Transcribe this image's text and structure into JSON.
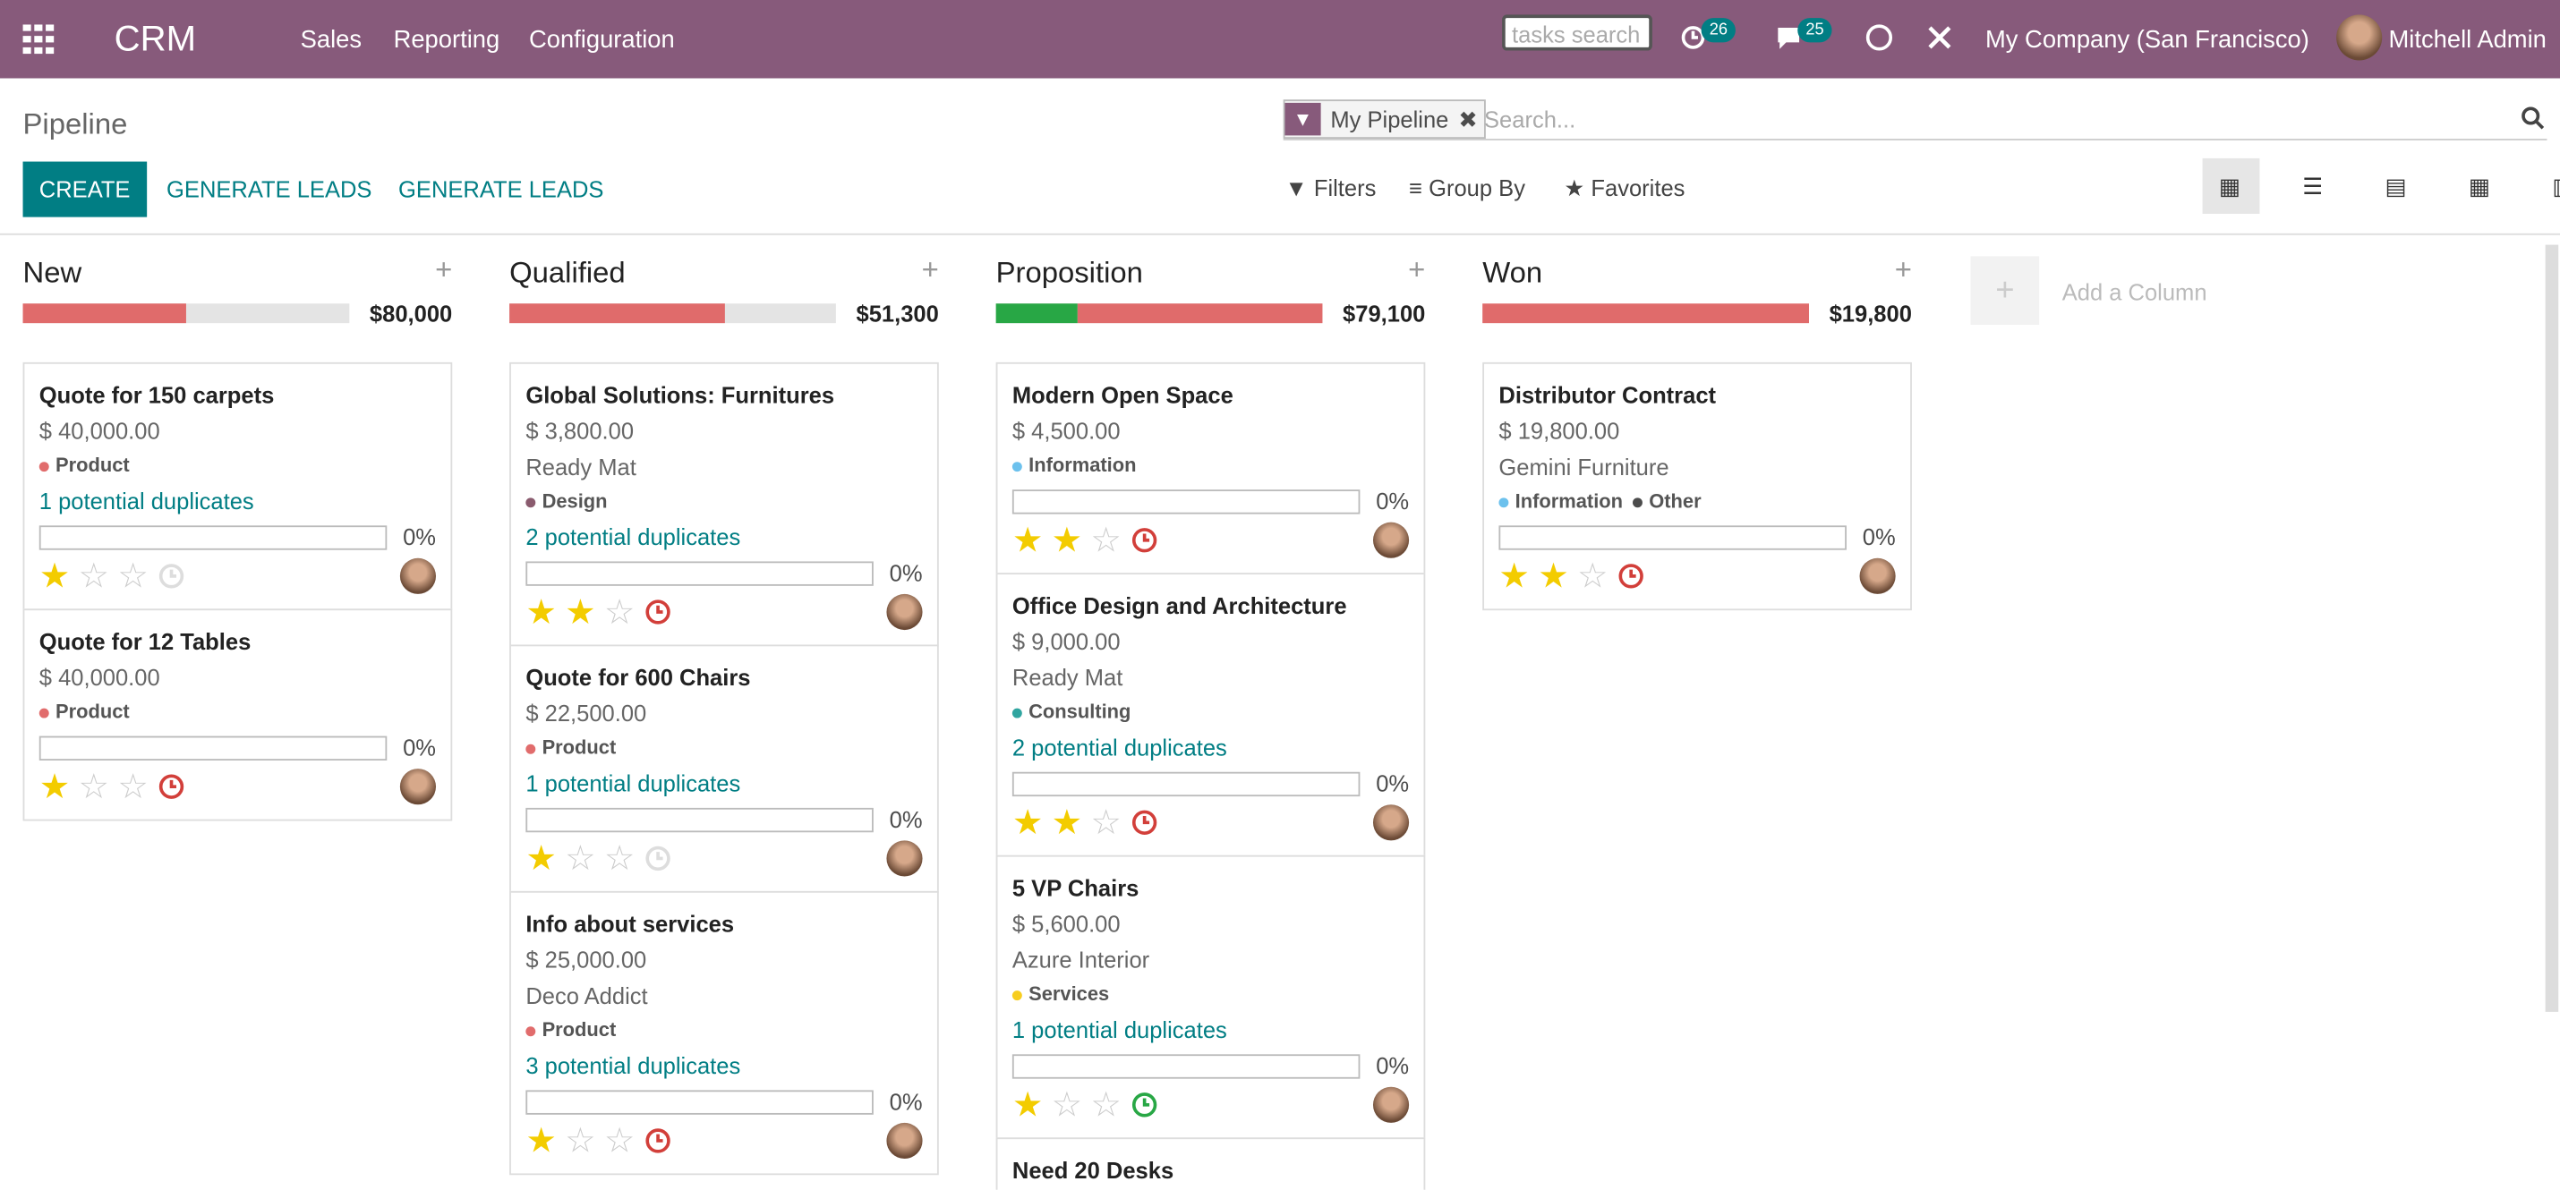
{
  "navbar": {
    "app": "CRM",
    "menus": [
      "Sales",
      "Reporting",
      "Configuration"
    ],
    "search_placeholder": "tasks search",
    "activity_count": 26,
    "message_count": 25,
    "company": "My Company (San Francisco)",
    "user": "Mitchell Admin"
  },
  "control_panel": {
    "breadcrumb": "Pipeline",
    "facet": "My Pipeline",
    "search_placeholder": "Search...",
    "buttons": [
      "CREATE",
      "GENERATE LEADS",
      "GENERATE LEADS"
    ],
    "search_options": [
      "Filters",
      "Group By",
      "Favorites"
    ]
  },
  "columns": [
    {
      "name": "New",
      "total": "$80,000",
      "cards": [
        {
          "title": "Quote for 150 carpets",
          "amount": "$ 40,000.00",
          "tags": [
            {
              "name": "Product",
              "color": "#e16c6c"
            }
          ],
          "duplicates": "1 potential duplicates",
          "probability": "0%",
          "priority": 1,
          "activity_color": "#dddddd"
        },
        {
          "title": "Quote for 12 Tables",
          "amount": "$ 40,000.00",
          "tags": [
            {
              "name": "Product",
              "color": "#e16c6c"
            }
          ],
          "probability": "0%",
          "priority": 1,
          "activity_color": "#d23f3a"
        }
      ]
    },
    {
      "name": "Qualified",
      "total": "$51,300",
      "cards": [
        {
          "title": "Global Solutions: Furnitures",
          "amount": "$ 3,800.00",
          "company": "Ready Mat",
          "tags": [
            {
              "name": "Design",
              "color": "#8a5b6e"
            }
          ],
          "duplicates": "2 potential duplicates",
          "probability": "0%",
          "priority": 2,
          "activity_color": "#d23f3a"
        },
        {
          "title": "Quote for 600 Chairs",
          "amount": "$ 22,500.00",
          "tags": [
            {
              "name": "Product",
              "color": "#e16c6c"
            }
          ],
          "duplicates": "1 potential duplicates",
          "probability": "0%",
          "priority": 1,
          "activity_color": "#dddddd"
        },
        {
          "title": "Info about services",
          "amount": "$ 25,000.00",
          "company": "Deco Addict",
          "tags": [
            {
              "name": "Product",
              "color": "#e16c6c"
            }
          ],
          "duplicates": "3 potential duplicates",
          "probability": "0%",
          "priority": 1,
          "activity_color": "#d23f3a"
        }
      ]
    },
    {
      "name": "Proposition",
      "total": "$79,100",
      "cards": [
        {
          "title": "Modern Open Space",
          "amount": "$ 4,500.00",
          "tags": [
            {
              "name": "Information",
              "color": "#6cc1ed"
            }
          ],
          "probability": "0%",
          "priority": 2,
          "activity_color": "#d23f3a"
        },
        {
          "title": "Office Design and Architecture",
          "amount": "$ 9,000.00",
          "company": "Ready Mat",
          "tags": [
            {
              "name": "Consulting",
              "color": "#30a5a0"
            }
          ],
          "duplicates": "2 potential duplicates",
          "probability": "0%",
          "priority": 2,
          "activity_color": "#d23f3a"
        },
        {
          "title": "5 VP Chairs",
          "amount": "$ 5,600.00",
          "company": "Azure Interior",
          "tags": [
            {
              "name": "Services",
              "color": "#f7cd1f"
            }
          ],
          "duplicates": "1 potential duplicates",
          "probability": "0%",
          "priority": 1,
          "activity_color": "#28a745"
        },
        {
          "title": "Need 20 Desks"
        }
      ]
    },
    {
      "name": "Won",
      "total": "$19,800",
      "cards": [
        {
          "title": "Distributor Contract",
          "amount": "$ 19,800.00",
          "company": "Gemini Furniture",
          "tags": [
            {
              "name": "Information",
              "color": "#6cc1ed"
            },
            {
              "name": "Other",
              "color": "#4c4c4c"
            }
          ],
          "probability": "0%",
          "priority": 2,
          "activity_color": "#d23f3a"
        }
      ]
    }
  ],
  "add_column": "Add a Column"
}
